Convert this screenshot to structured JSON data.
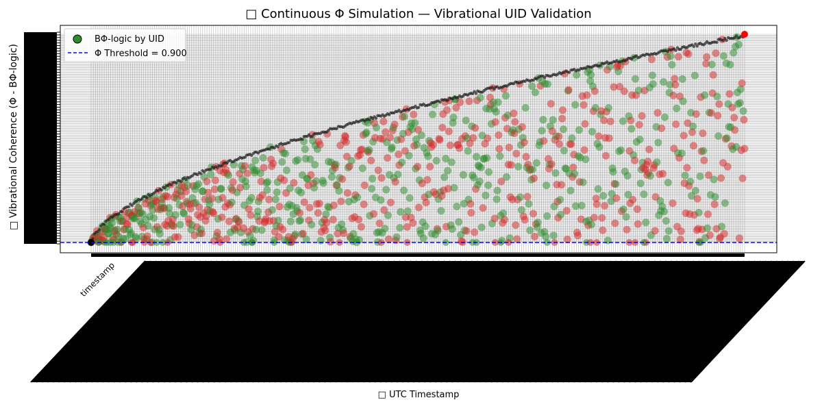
{
  "chart_data": {
    "type": "scatter",
    "title": "□ Continuous Φ Simulation — Vibrational UID Validation",
    "xlabel": "□ UTC Timestamp",
    "ylabel": "□ Vibrational Coherence (Φ - BΦ-logic)",
    "x_tick_labels": [
      "timestamp"
    ],
    "x_tick_count_approx": 1000,
    "y_ticks_overplotted": true,
    "legend_position": "upper-left",
    "legend": [
      {
        "label": "BΦ-logic by UID",
        "marker": "circle",
        "color": "#2e8b2e"
      },
      {
        "label": "Φ Threshold = 0.900",
        "marker": "dashed-line",
        "color": "#0000ff"
      }
    ],
    "threshold": {
      "value": 0.9,
      "color": "#0000ff",
      "style": "dashed"
    },
    "point_colors": {
      "pass": "#2e8b2e",
      "fail": "#d62728"
    },
    "grid": true,
    "colors": {
      "gridlines": "#999999",
      "tick_labels": "#000000",
      "threshold": "#0000ff",
      "green_points": "#2e8b2e",
      "red_points": "#d62728",
      "first_point": "#000000",
      "last_point": "#ff0000"
    }
  }
}
